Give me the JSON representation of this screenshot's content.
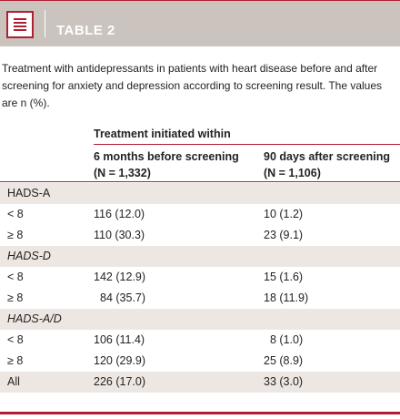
{
  "header": {
    "title": "TABLE 2",
    "icon": "table-document-icon"
  },
  "caption": "Treatment with antidepressants in patients with heart disease before and after screening for anxiety and depression according to screening result. The values are n (%).",
  "table": {
    "group_header": "Treatment initiated within",
    "columns": [
      {
        "line1": "6 months before screening",
        "line2": "(N = 1,332)"
      },
      {
        "line1": "90 days after screening",
        "line2": "(N = 1,106)"
      }
    ],
    "rows": [
      {
        "label": "HADS-A",
        "v1": "",
        "v2": ""
      },
      {
        "label": "< 8",
        "v1": "116 (12.0)",
        "v2": "10 (1.2)"
      },
      {
        "label": "≥ 8",
        "v1": "110 (30.3)",
        "v2": "23 (9.1)"
      },
      {
        "label": "HADS-D",
        "v1": "",
        "v2": ""
      },
      {
        "label": "< 8",
        "v1": "142 (12.9)",
        "v2": "15 (1.6)"
      },
      {
        "label": "≥ 8",
        "v1": "84 (35.7)",
        "v2": "18 (11.9)"
      },
      {
        "label": "HADS-A/D",
        "v1": "",
        "v2": ""
      },
      {
        "label": "< 8",
        "v1": "106 (11.4)",
        "v2": "8 (1.0)"
      },
      {
        "label": "≥ 8",
        "v1": "120 (29.9)",
        "v2": "25 (8.9)"
      },
      {
        "label": "All",
        "v1": "226 (17.0)",
        "v2": "33 (3.0)"
      }
    ]
  },
  "colors": {
    "accent": "#b11e32",
    "header_bg": "#cbc3bd",
    "row_shade": "#ede7e3"
  }
}
